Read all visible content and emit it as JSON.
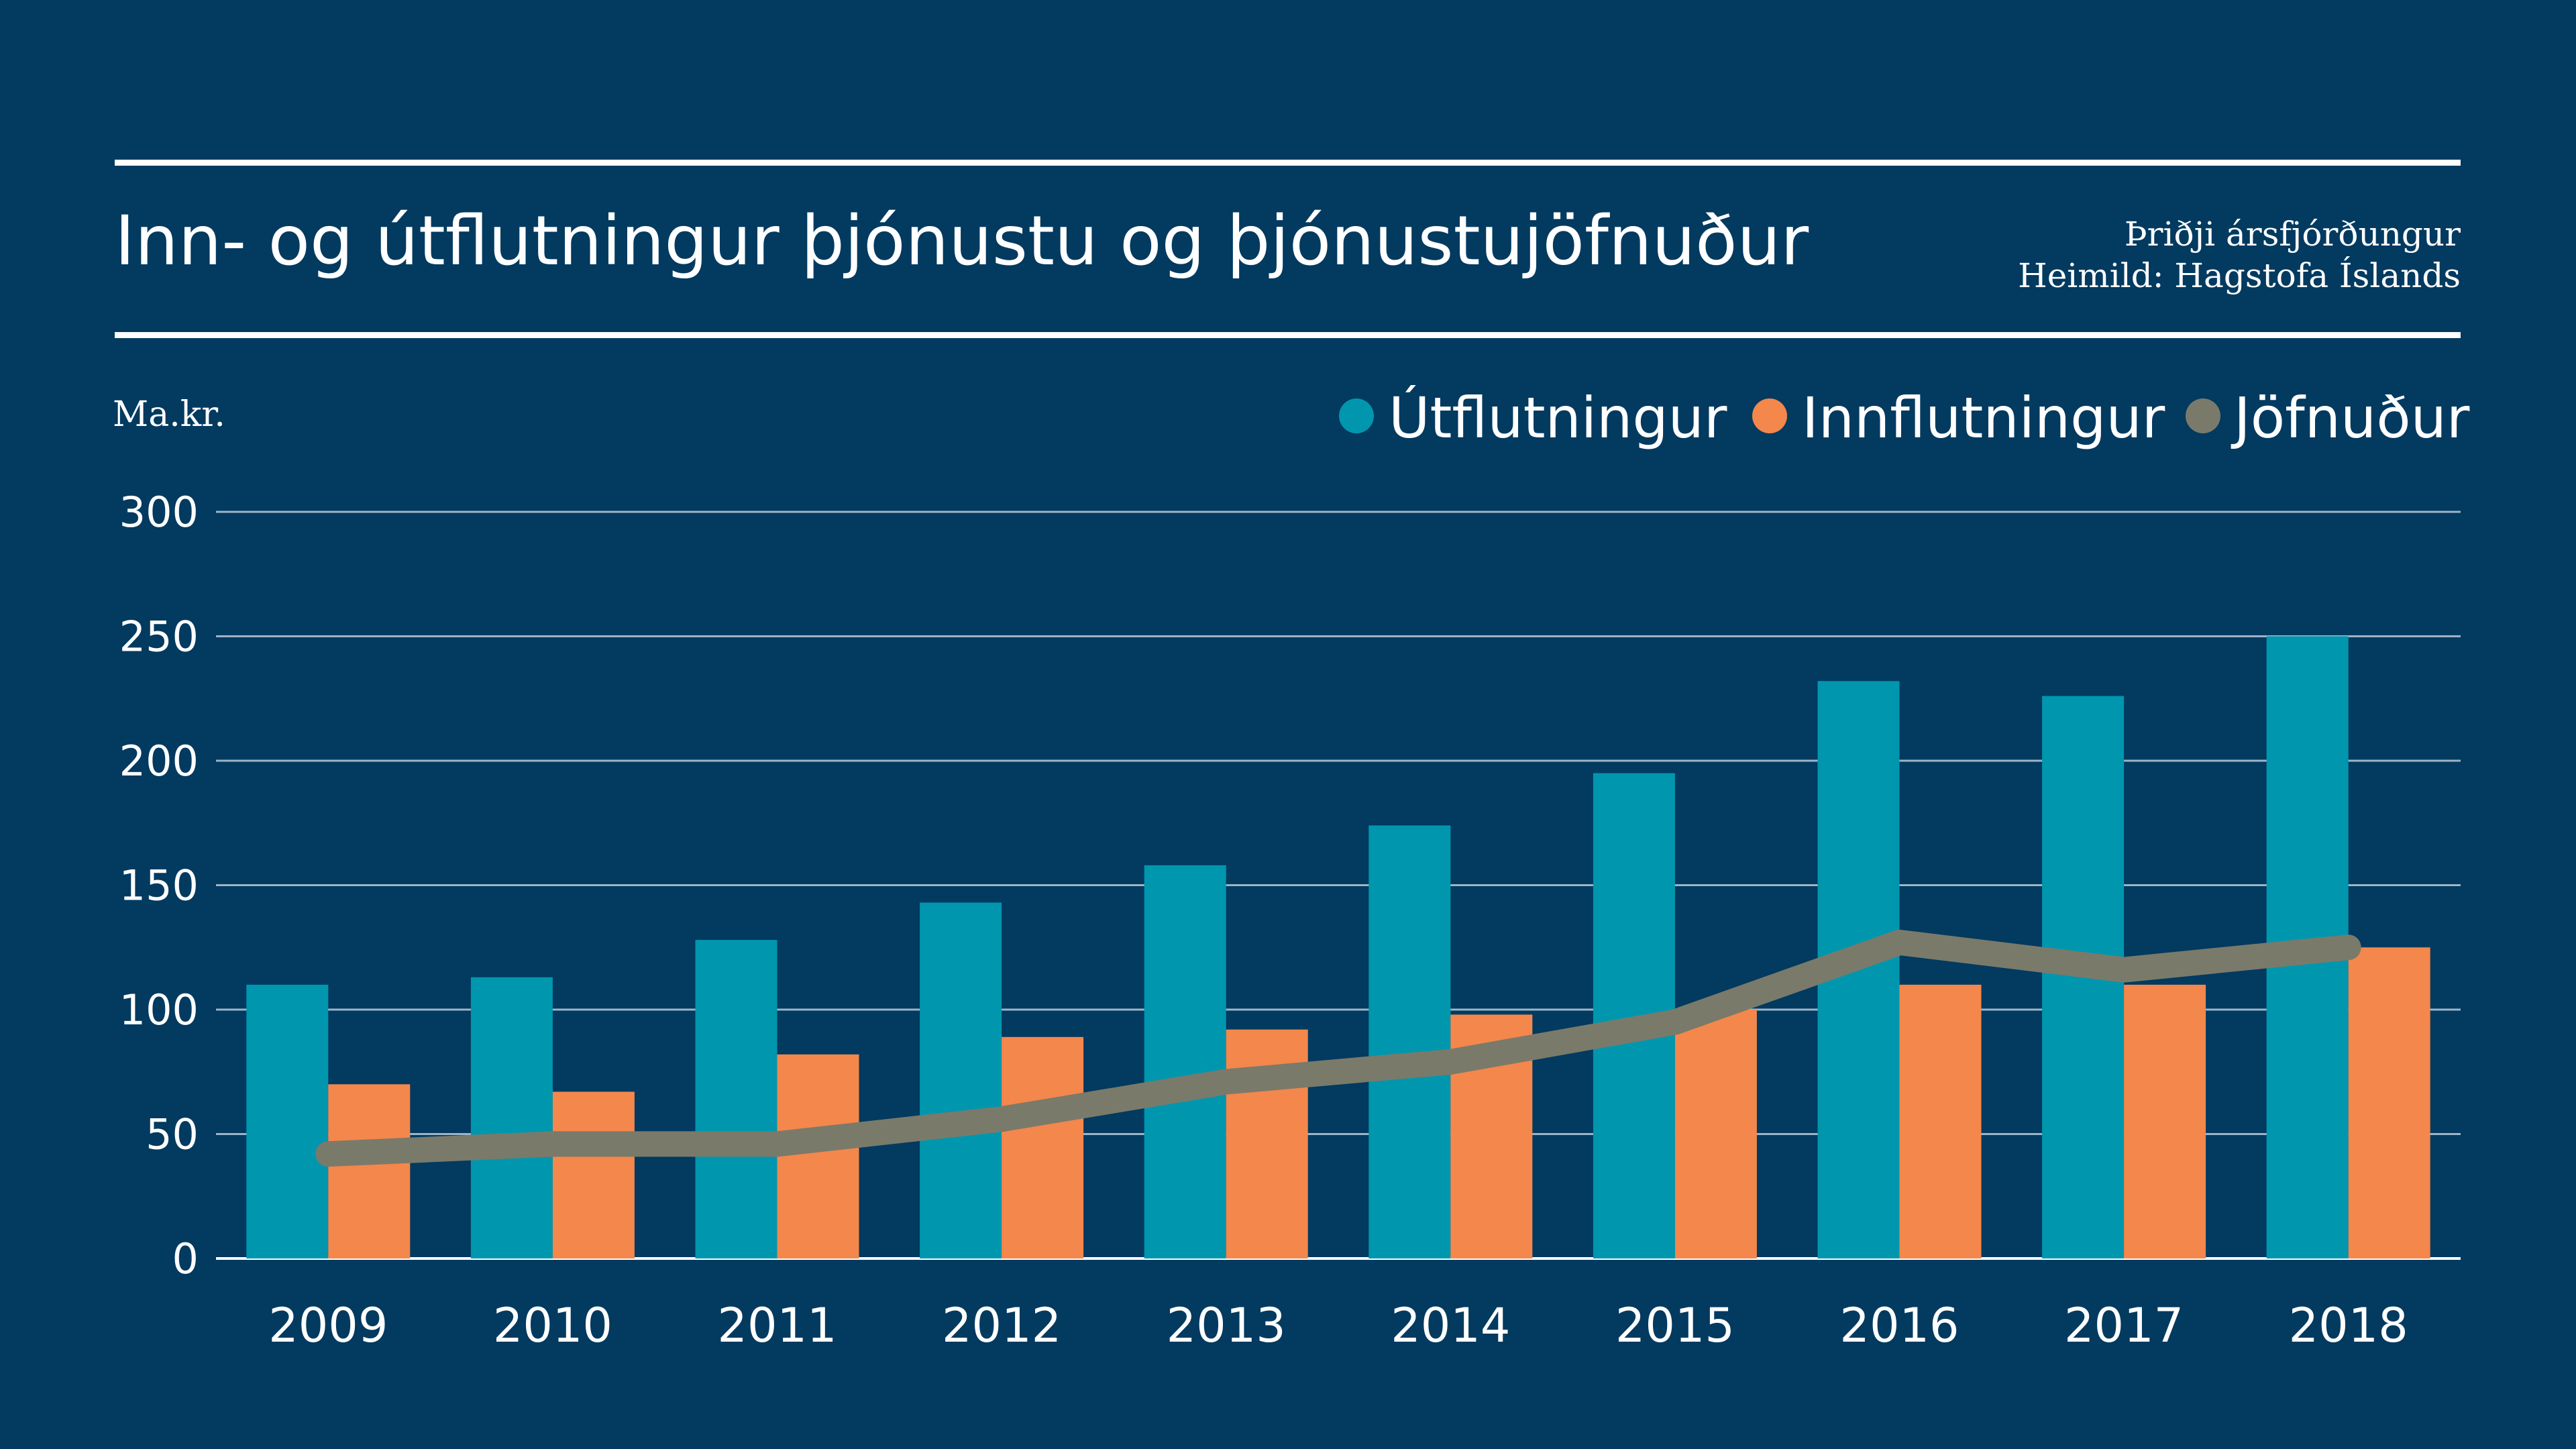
{
  "header": {
    "title": "Inn- og útflutningur þjónustu og þjónustujöfnuður",
    "period": "Þriðji ársfjórðungur",
    "source": "Heimild: Hagstofa Íslands"
  },
  "colors": {
    "background": "#023a60",
    "exports": "#0097ae",
    "imports": "#f4874b",
    "balance": "#7a7a6a",
    "text": "#ffffff",
    "grid": "#9fb4c6"
  },
  "chart_data": {
    "type": "bar",
    "title": "Inn- og útflutningur þjónustu og þjónustujöfnuður",
    "ylabel": "Ma.kr.",
    "xlabel": "",
    "ylim": [
      0,
      300
    ],
    "yticks": [
      0,
      50,
      100,
      150,
      200,
      250,
      300
    ],
    "grid": true,
    "legend_position": "top-right",
    "categories": [
      "2009",
      "2010",
      "2011",
      "2012",
      "2013",
      "2014",
      "2015",
      "2016",
      "2017",
      "2018"
    ],
    "series": [
      {
        "name": "Útflutningur",
        "kind": "bar",
        "color": "#0097ae",
        "values": [
          110,
          113,
          128,
          143,
          158,
          174,
          195,
          232,
          226,
          250
        ]
      },
      {
        "name": "Innflutningur",
        "kind": "bar",
        "color": "#f4874b",
        "values": [
          70,
          67,
          82,
          89,
          92,
          98,
          100,
          110,
          110,
          125
        ]
      },
      {
        "name": "Jöfnuður",
        "kind": "line",
        "color": "#7a7a6a",
        "values": [
          42,
          46,
          46,
          56,
          71,
          79,
          95,
          127,
          116,
          125
        ]
      }
    ]
  }
}
